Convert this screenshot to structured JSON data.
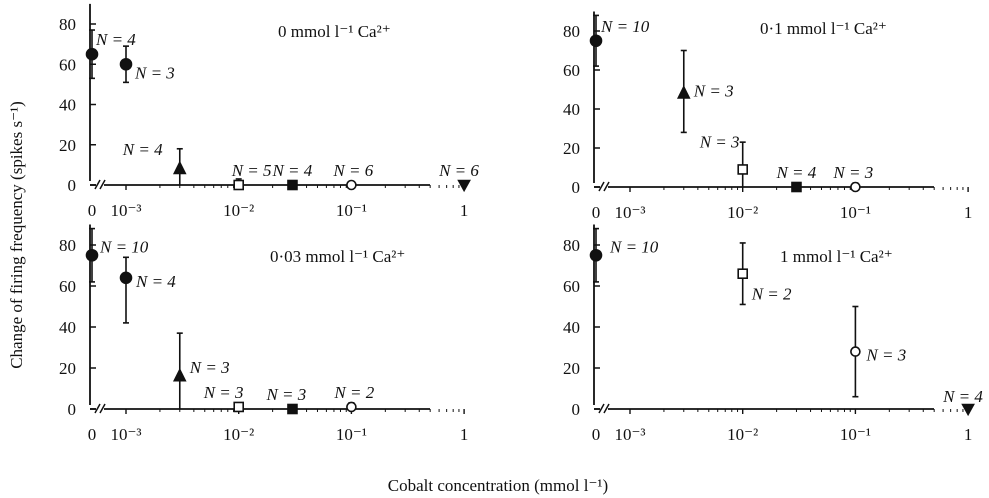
{
  "chart_data": {
    "type": "scatter",
    "xlabel": "Cobalt concentration (mmol l⁻¹)",
    "ylabel": "Change of firing frequency (spikes s⁻¹)",
    "x_scale": "log, with a broken axis at 0",
    "x_tick_labels": [
      "0",
      "10⁻³",
      "10⁻²",
      "10⁻¹",
      "1"
    ],
    "y_ticks": [
      0,
      20,
      40,
      60,
      80
    ],
    "ylim": [
      0,
      90
    ],
    "panels": [
      {
        "label": "0 mmol l⁻¹ Ca²⁺",
        "points": [
          {
            "x": 0,
            "y": 65,
            "err_low": 53,
            "err_high": 77,
            "marker": "filled-circle",
            "n": "N = 4"
          },
          {
            "x": 0.001,
            "y": 60,
            "err_low": 51,
            "err_high": 69,
            "marker": "filled-circle",
            "n": "N = 3"
          },
          {
            "x": 0.003,
            "y": 8,
            "err_low": 0,
            "err_high": 18,
            "marker": "filled-triangle-up",
            "n": "N = 4"
          },
          {
            "x": 0.01,
            "y": 0,
            "err_low": 0,
            "err_high": 3,
            "marker": "open-square",
            "n": "N = 5"
          },
          {
            "x": 0.03,
            "y": 0,
            "err_low": 0,
            "err_high": 1,
            "marker": "filled-square",
            "n": "N = 4"
          },
          {
            "x": 0.1,
            "y": 0,
            "err_low": 0,
            "err_high": 1,
            "marker": "open-circle",
            "n": "N = 6"
          },
          {
            "x": 1,
            "y": 0,
            "err_low": 0,
            "err_high": 1,
            "marker": "filled-triangle-down",
            "n": "N = 6"
          }
        ]
      },
      {
        "label": "0·1 mmol l⁻¹ Ca²⁺",
        "points": [
          {
            "x": 0,
            "y": 75,
            "err_low": 62,
            "err_high": 88,
            "marker": "filled-circle",
            "n": "N = 10"
          },
          {
            "x": 0.003,
            "y": 48,
            "err_low": 28,
            "err_high": 70,
            "marker": "filled-triangle-up",
            "n": "N = 3"
          },
          {
            "x": 0.01,
            "y": 9,
            "err_low": 0,
            "err_high": 23,
            "marker": "open-square",
            "n": "N = 3"
          },
          {
            "x": 0.03,
            "y": 0,
            "err_low": 0,
            "err_high": 2,
            "marker": "filled-square",
            "n": "N = 4"
          },
          {
            "x": 0.1,
            "y": 0,
            "err_low": 0,
            "err_high": 2,
            "marker": "open-circle",
            "n": "N = 3"
          }
        ]
      },
      {
        "label": "0·03 mmol l⁻¹ Ca²⁺",
        "points": [
          {
            "x": 0,
            "y": 75,
            "err_low": 62,
            "err_high": 88,
            "marker": "filled-circle",
            "n": "N = 10"
          },
          {
            "x": 0.001,
            "y": 64,
            "err_low": 42,
            "err_high": 74,
            "marker": "filled-circle",
            "n": "N = 4"
          },
          {
            "x": 0.003,
            "y": 16,
            "err_low": 0,
            "err_high": 37,
            "marker": "filled-triangle-up",
            "n": "N = 3"
          },
          {
            "x": 0.01,
            "y": 1,
            "err_low": 0,
            "err_high": 3,
            "marker": "open-square",
            "n": "N = 3"
          },
          {
            "x": 0.03,
            "y": 0,
            "err_low": 0,
            "err_high": 2,
            "marker": "filled-square",
            "n": "N = 3"
          },
          {
            "x": 0.1,
            "y": 1,
            "err_low": 0,
            "err_high": 3,
            "marker": "open-circle",
            "n": "N = 2"
          }
        ]
      },
      {
        "label": "1 mmol l⁻¹ Ca²⁺",
        "points": [
          {
            "x": 0,
            "y": 75,
            "err_low": 62,
            "err_high": 88,
            "marker": "filled-circle",
            "n": "N = 10"
          },
          {
            "x": 0.01,
            "y": 66,
            "err_low": 51,
            "err_high": 81,
            "marker": "open-square",
            "n": "N = 2"
          },
          {
            "x": 0.1,
            "y": 28,
            "err_low": 6,
            "err_high": 50,
            "marker": "open-circle",
            "n": "N = 3"
          },
          {
            "x": 1,
            "y": 0,
            "err_low": 0,
            "err_high": 2,
            "marker": "filled-triangle-down",
            "n": "N = 4"
          }
        ]
      }
    ]
  }
}
